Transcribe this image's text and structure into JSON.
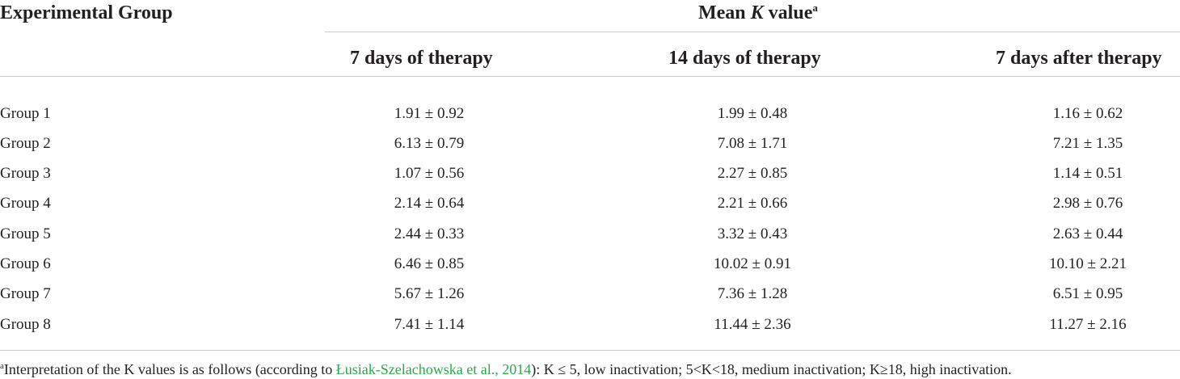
{
  "header": {
    "group_label": "Experimental Group",
    "mean_prefix": "Mean ",
    "mean_var": "K",
    "mean_suffix": " value",
    "mean_sup": "a",
    "columns": [
      "7 days of therapy",
      "14 days of therapy",
      "7 days after therapy"
    ]
  },
  "rows": [
    {
      "group": "Group 1",
      "values": [
        "1.91 ± 0.92",
        "1.99 ± 0.48",
        "1.16 ± 0.62"
      ]
    },
    {
      "group": "Group 2",
      "values": [
        "6.13 ± 0.79",
        "7.08 ± 1.71",
        "7.21 ± 1.35"
      ]
    },
    {
      "group": "Group 3",
      "values": [
        "1.07 ± 0.56",
        "2.27 ± 0.85",
        "1.14 ± 0.51"
      ]
    },
    {
      "group": "Group 4",
      "values": [
        "2.14 ± 0.64",
        "2.21 ± 0.66",
        "2.98 ± 0.76"
      ]
    },
    {
      "group": "Group 5",
      "values": [
        "2.44 ± 0.33",
        "3.32 ± 0.43",
        "2.63 ± 0.44"
      ]
    },
    {
      "group": "Group 6",
      "values": [
        "6.46 ± 0.85",
        "10.02 ± 0.91",
        "10.10 ± 2.21"
      ]
    },
    {
      "group": "Group 7",
      "values": [
        "5.67 ± 1.26",
        "7.36 ± 1.28",
        "6.51 ± 0.95"
      ]
    },
    {
      "group": "Group 8",
      "values": [
        "7.41 ± 1.14",
        "11.44 ± 2.36",
        "11.27 ± 2.16"
      ]
    }
  ],
  "footnote": {
    "sup": "a",
    "before": "Interpretation of the K values is as follows (according to ",
    "link": "Łusiak-Szelachowska et al., 2014",
    "after": "): K ≤ 5, low inactivation; 5<K<18, medium inactivation; K≥18, high inactivation."
  },
  "colors": {
    "link": "#2ba84a",
    "text": "#231f20",
    "rule": "#c9c9c9"
  }
}
